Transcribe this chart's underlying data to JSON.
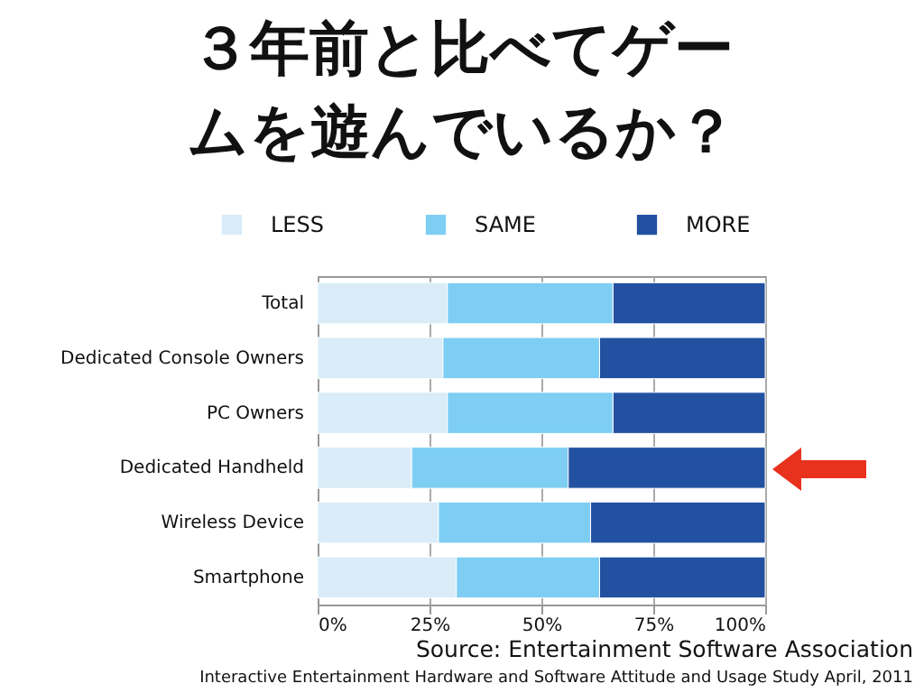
{
  "chart_data": {
    "type": "bar",
    "orientation": "horizontal",
    "stacked": true,
    "title": "３年前と比べてゲームを遊んでいるか？",
    "categories": [
      "Total",
      "Dedicated Console Owners",
      "PC Owners",
      "Dedicated Handheld",
      "Wireless Device",
      "Smartphone"
    ],
    "series": [
      {
        "name": "LESS",
        "color": "#d9ecf7",
        "values": [
          29,
          28,
          29,
          21,
          27,
          31
        ]
      },
      {
        "name": "SAME",
        "color": "#7ecef4",
        "values": [
          37,
          35,
          37,
          35,
          34,
          32
        ]
      },
      {
        "name": "MORE",
        "color": "#2251a1",
        "values": [
          34,
          37,
          34,
          44,
          39,
          37
        ]
      }
    ],
    "xlim": [
      0,
      100
    ],
    "xticks": [
      {
        "value": 0,
        "label": "0%"
      },
      {
        "value": 25,
        "label": "25%"
      },
      {
        "value": 50,
        "label": "50%"
      },
      {
        "value": 75,
        "label": "75%"
      },
      {
        "value": 100,
        "label": "100%"
      }
    ],
    "grid": "x",
    "legend": "top",
    "annotations": [
      "Source: Entertainment Software Association",
      "Interactive Entertainment Hardware and Software Attitude and Usage Study April, 2011"
    ]
  }
}
